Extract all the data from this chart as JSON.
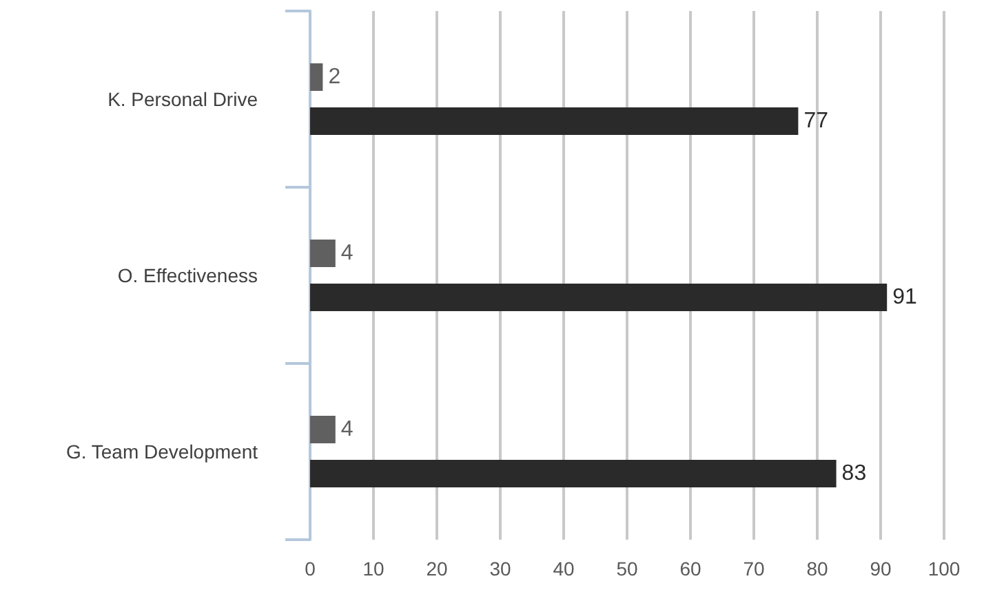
{
  "chart_data": {
    "type": "bar",
    "orientation": "horizontal",
    "categories": [
      "K. Personal Drive",
      "O. Effectiveness",
      "G. Team Development"
    ],
    "series": [
      {
        "color": "#606060",
        "values": [
          2,
          4,
          4
        ]
      },
      {
        "color": "#2a2a2a",
        "values": [
          77,
          91,
          83
        ]
      }
    ],
    "xlim": [
      0,
      100
    ],
    "xticks": [
      0,
      10,
      20,
      30,
      40,
      50,
      60,
      70,
      80,
      90,
      100
    ],
    "grid": "x",
    "data_labels": true
  }
}
